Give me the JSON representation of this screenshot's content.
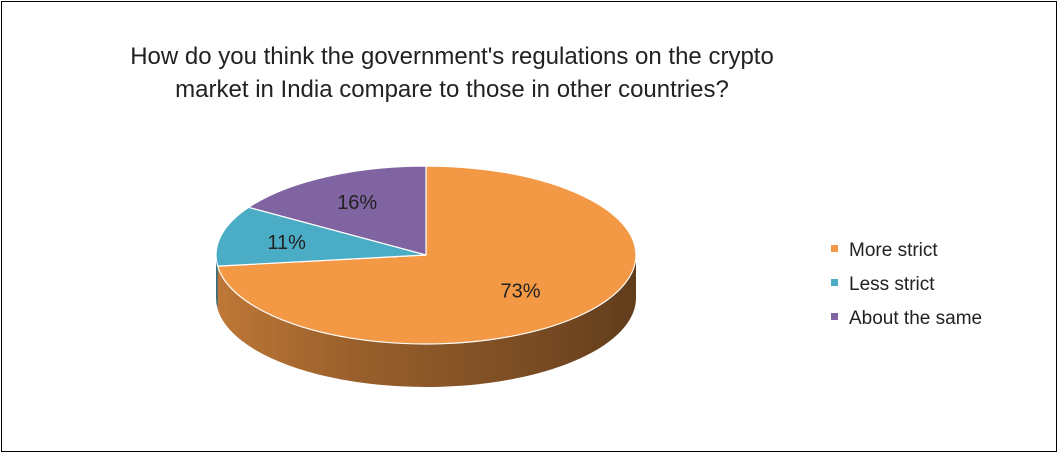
{
  "chart_data": {
    "type": "pie",
    "title_lines": [
      "How do you think the government's regulations on the crypto",
      "market in India compare to those in other countries?"
    ],
    "slices": [
      {
        "label": "More strict",
        "value": 73,
        "display": "73%",
        "color": "#F39845"
      },
      {
        "label": "Less strict",
        "value": 11,
        "display": "11%",
        "color": "#4BACC6"
      },
      {
        "label": "About the same",
        "value": 16,
        "display": "16%",
        "color": "#8064A2"
      }
    ],
    "legend_position": "right",
    "style": "3d"
  }
}
